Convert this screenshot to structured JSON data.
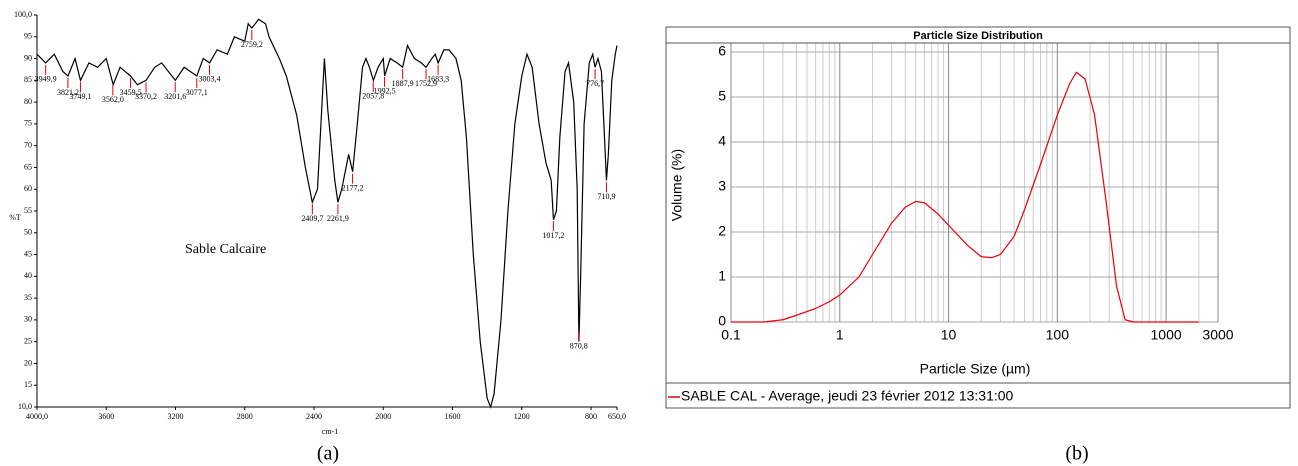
{
  "chart_data": [
    {
      "type": "line",
      "caption": "(a)",
      "x_label": "cm-1",
      "y_label": "%T",
      "annotation": "Sable Calcaire",
      "color": "#000000",
      "xlim": [
        4000,
        650
      ],
      "ylim": [
        10,
        100
      ],
      "xticks": [
        {
          "value": 4000,
          "label": "4000,0"
        },
        3600,
        3200,
        2800,
        2400,
        2000,
        1600,
        1200,
        800,
        {
          "value": 650,
          "label": "650,0"
        }
      ],
      "yticks": [
        {
          "value": 10,
          "label": "10,0"
        },
        15,
        20,
        25,
        30,
        35,
        40,
        45,
        50,
        55,
        60,
        65,
        70,
        75,
        80,
        85,
        90,
        95,
        {
          "value": 100,
          "label": "100,0"
        }
      ],
      "grid": false,
      "x": [
        4000,
        3950,
        3900,
        3850,
        3821,
        3780,
        3749,
        3700,
        3650,
        3600,
        3560,
        3520,
        3460,
        3420,
        3370,
        3320,
        3280,
        3201,
        3150,
        3077,
        3040,
        3003,
        2960,
        2900,
        2860,
        2800,
        2780,
        2759,
        2720,
        2680,
        2660,
        2600,
        2560,
        2500,
        2450,
        2410,
        2380,
        2360,
        2340,
        2320,
        2280,
        2262,
        2240,
        2200,
        2177,
        2150,
        2120,
        2100,
        2080,
        2057,
        2030,
        2000,
        1992,
        1960,
        1920,
        1888,
        1860,
        1820,
        1780,
        1753,
        1720,
        1700,
        1683,
        1650,
        1620,
        1580,
        1550,
        1520,
        1480,
        1440,
        1400,
        1380,
        1360,
        1320,
        1280,
        1240,
        1200,
        1170,
        1140,
        1100,
        1060,
        1030,
        1017,
        1000,
        980,
        950,
        930,
        900,
        880,
        870,
        860,
        840,
        810,
        790,
        777,
        760,
        740,
        720,
        711,
        700,
        680,
        660,
        650
      ],
      "values": [
        91,
        89,
        91,
        87,
        86,
        90,
        85,
        89,
        88,
        90,
        84,
        88,
        86,
        84,
        85,
        88,
        89,
        85,
        88,
        86,
        90,
        89,
        92,
        91,
        95,
        94,
        98,
        97,
        99,
        98,
        95,
        90,
        86,
        77,
        65,
        57,
        60,
        75,
        90,
        78,
        62,
        57,
        60,
        68,
        64,
        75,
        88,
        90,
        88,
        85,
        88,
        90,
        86,
        90,
        89,
        88,
        93,
        90,
        89,
        88,
        90,
        91,
        89,
        92,
        92,
        90,
        85,
        72,
        45,
        25,
        12,
        10,
        13,
        30,
        55,
        75,
        86,
        91,
        88,
        75,
        66,
        62,
        53,
        55,
        72,
        87,
        89,
        80,
        60,
        25,
        40,
        75,
        89,
        91,
        88,
        90,
        87,
        70,
        62,
        68,
        85,
        91,
        93
      ],
      "peaks": [
        {
          "value": 3949.9,
          "label": "3949,9"
        },
        {
          "value": 3821.2,
          "label": "3821,2"
        },
        {
          "value": 3749.1,
          "label": "3749,1"
        },
        {
          "value": 3562.0,
          "label": "3562,0"
        },
        {
          "value": 3459.5,
          "label": "3459,5"
        },
        {
          "value": 3370.2,
          "label": "3370,2"
        },
        {
          "value": 3201.6,
          "label": "3201,6"
        },
        {
          "value": 3077.1,
          "label": "3077,1"
        },
        {
          "value": 3003.4,
          "label": "3003,4"
        },
        {
          "value": 2759.2,
          "label": "2759,2"
        },
        {
          "value": 2409.7,
          "label": "2409,7"
        },
        {
          "value": 2261.9,
          "label": "2261,9"
        },
        {
          "value": 2177.2,
          "label": "2177,2"
        },
        {
          "value": 2057.8,
          "label": "2057,8"
        },
        {
          "value": 1992.5,
          "label": "1992,5"
        },
        {
          "value": 1887.9,
          "label": "1887,9"
        },
        {
          "value": 1752.9,
          "label": "1752,9"
        },
        {
          "value": 1683.3,
          "label": "1683,3"
        },
        {
          "value": 1017.2,
          "label": "1017,2"
        },
        {
          "value": 870.8,
          "label": "870,8"
        },
        {
          "value": 776.7,
          "label": "776,7"
        },
        {
          "value": 710.9,
          "label": "710,9"
        }
      ]
    },
    {
      "type": "line",
      "caption": "(b)",
      "title": "Particle Size Distribution",
      "x_label": "Particle Size (µm)",
      "y_label": "Volume (%)",
      "log_x": true,
      "grid": true,
      "minor_grid": true,
      "xlim": [
        0.1,
        3000
      ],
      "ylim": [
        0,
        6.2
      ],
      "xticks": [
        0.1,
        1,
        10,
        100,
        1000,
        3000
      ],
      "yticks": [
        0,
        1,
        2,
        3,
        4,
        5,
        6
      ],
      "series": [
        {
          "name": "SABLE CAL - Average, jeudi 23 février 2012 13:31:00",
          "color": "#e8000b",
          "x": [
            0.1,
            0.2,
            0.3,
            0.4,
            0.6,
            0.8,
            1,
            1.5,
            2,
            3,
            4,
            5,
            6,
            8,
            10,
            15,
            20,
            25,
            30,
            40,
            50,
            70,
            100,
            130,
            150,
            180,
            220,
            280,
            350,
            420,
            500,
            1000,
            2000
          ],
          "values": [
            0,
            0,
            0.05,
            0.15,
            0.3,
            0.45,
            0.6,
            1.0,
            1.5,
            2.2,
            2.55,
            2.68,
            2.65,
            2.4,
            2.15,
            1.7,
            1.45,
            1.43,
            1.5,
            1.9,
            2.5,
            3.5,
            4.6,
            5.3,
            5.55,
            5.4,
            4.6,
            2.7,
            0.8,
            0.05,
            0,
            0,
            0
          ]
        }
      ]
    }
  ]
}
